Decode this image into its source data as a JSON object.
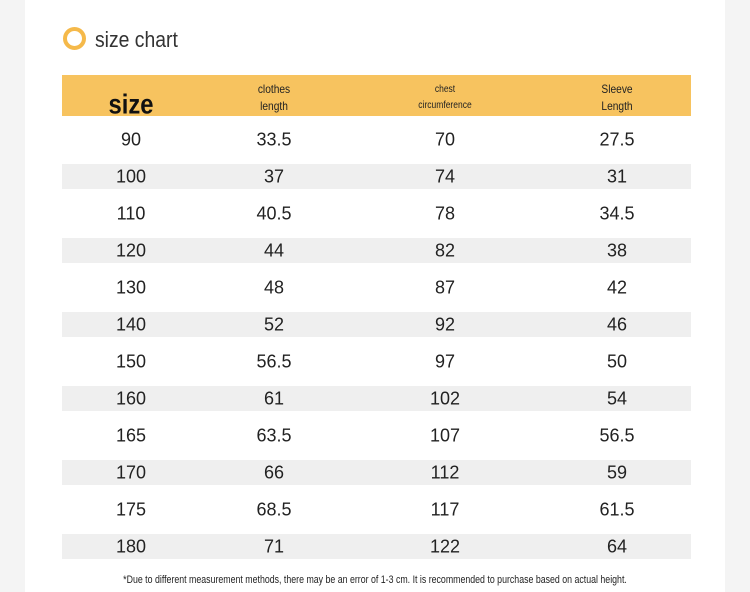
{
  "header": {
    "title": "size chart"
  },
  "table": {
    "columns": [
      [
        "size"
      ],
      [
        "clothes",
        "length"
      ],
      [
        "chest",
        "circumference"
      ],
      [
        "Sleeve",
        "Length"
      ]
    ],
    "rows": [
      [
        90,
        33.5,
        70,
        27.5
      ],
      [
        100,
        37,
        74,
        31
      ],
      [
        110,
        40.5,
        78,
        34.5
      ],
      [
        120,
        44,
        82,
        38
      ],
      [
        130,
        48,
        87,
        42
      ],
      [
        140,
        52,
        92,
        46
      ],
      [
        150,
        56.5,
        97,
        50
      ],
      [
        160,
        61,
        102,
        54
      ],
      [
        165,
        63.5,
        107,
        56.5
      ],
      [
        170,
        66,
        112,
        59
      ],
      [
        175,
        68.5,
        117,
        61.5
      ],
      [
        180,
        71,
        122,
        64
      ]
    ]
  },
  "footnote": "*Due to different measurement methods, there may be an error of 1-3 cm. It is recommended to purchase based on actual height."
}
